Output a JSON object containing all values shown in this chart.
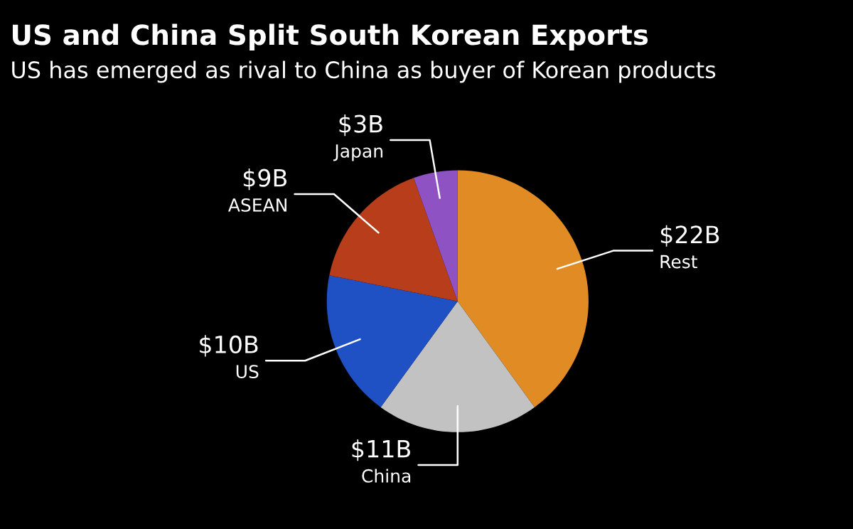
{
  "chart_data": {
    "type": "pie",
    "title": "US and China Split South Korean Exports",
    "subtitle": "US has emerged as rival to China as buyer of Korean products",
    "categories": [
      "Rest",
      "China",
      "US",
      "ASEAN",
      "Japan"
    ],
    "values": [
      22,
      11,
      10,
      9,
      3
    ],
    "value_labels": [
      "$22B",
      "$11B",
      "$10B",
      "$9B",
      "$3B"
    ],
    "colors": [
      "#e08b24",
      "#c2c2c2",
      "#1f50c4",
      "#b83d1b",
      "#8e52c2"
    ],
    "legend": false
  }
}
